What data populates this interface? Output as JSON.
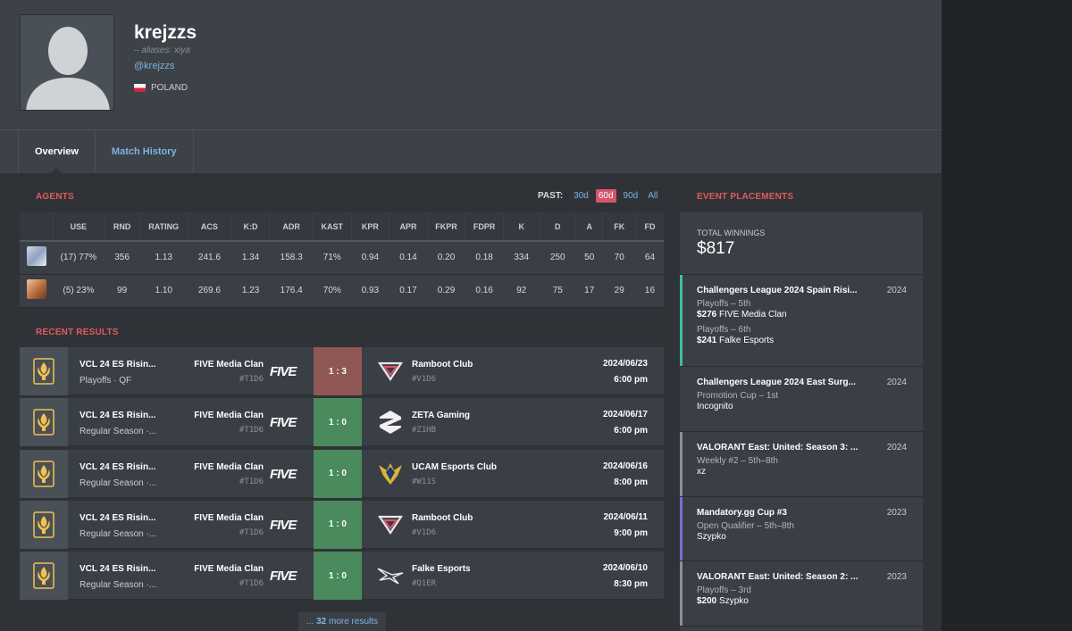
{
  "player": {
    "name": "krejzzs",
    "aliases": "– aliases: xiya",
    "handle": "@krejzzs",
    "country": "POLAND"
  },
  "tabs": [
    {
      "label": "Overview",
      "active": true
    },
    {
      "label": "Match History",
      "active": false
    }
  ],
  "agents": {
    "title": "AGENTS",
    "past_label": "PAST:",
    "past_options": [
      "30d",
      "60d",
      "90d",
      "All"
    ],
    "past_selected": "60d",
    "columns": [
      "",
      "USE",
      "RND",
      "RATING",
      "ACS",
      "K:D",
      "ADR",
      "KAST",
      "KPR",
      "APR",
      "FKPR",
      "FDPR",
      "K",
      "D",
      "A",
      "FK",
      "FD"
    ],
    "rows": [
      {
        "icon": "agent-portrait-icon",
        "cells": [
          "(17) 77%",
          "356",
          "1.13",
          "241.6",
          "1.34",
          "158.3",
          "71%",
          "0.94",
          "0.14",
          "0.20",
          "0.18",
          "334",
          "250",
          "50",
          "70",
          "64"
        ]
      },
      {
        "icon": "agent-portrait-icon",
        "cells": [
          "(5) 23%",
          "99",
          "1.10",
          "269.6",
          "1.23",
          "176.4",
          "70%",
          "0.93",
          "0.17",
          "0.29",
          "0.16",
          "92",
          "75",
          "17",
          "29",
          "16"
        ]
      }
    ]
  },
  "recent_results": {
    "title": "RECENT RESULTS",
    "items": [
      {
        "event": "VCL 24 ES Risin...",
        "stage": "Playoffs · QF",
        "team1": "FIVE Media Clan",
        "tag1": "#T1D6",
        "score": "1 : 3",
        "result": "loss",
        "team2": "Ramboot Club",
        "tag2": "#V1D6",
        "logo2": "ramboot",
        "date": "2024/06/23",
        "time": "6:00 pm"
      },
      {
        "event": "VCL 24 ES Risin...",
        "stage": "Regular Season ·...",
        "team1": "FIVE Media Clan",
        "tag1": "#T1D6",
        "score": "1 : 0",
        "result": "win",
        "team2": "ZETA Gaming",
        "tag2": "#Z1HB",
        "logo2": "zeta",
        "date": "2024/06/17",
        "time": "6:00 pm"
      },
      {
        "event": "VCL 24 ES Risin...",
        "stage": "Regular Season ·...",
        "team1": "FIVE Media Clan",
        "tag1": "#T1D6",
        "score": "1 : 0",
        "result": "win",
        "team2": "UCAM Esports Club",
        "tag2": "#W11S",
        "logo2": "ucam",
        "date": "2024/06/16",
        "time": "8:00 pm"
      },
      {
        "event": "VCL 24 ES Risin...",
        "stage": "Regular Season ·...",
        "team1": "FIVE Media Clan",
        "tag1": "#T1D6",
        "score": "1 : 0",
        "result": "win",
        "team2": "Ramboot Club",
        "tag2": "#V1D6",
        "logo2": "ramboot",
        "date": "2024/06/11",
        "time": "9:00 pm"
      },
      {
        "event": "VCL 24 ES Risin...",
        "stage": "Regular Season ·...",
        "team1": "FIVE Media Clan",
        "tag1": "#T1D6",
        "score": "1 : 0",
        "result": "win",
        "team2": "Falke Esports",
        "tag2": "#Q1ER",
        "logo2": "falke",
        "date": "2024/06/10",
        "time": "8:30 pm"
      }
    ],
    "team1_logo_text": "FIVE",
    "more_prefix": "...",
    "more_count": "32",
    "more_suffix": "more results"
  },
  "event_placements": {
    "title": "EVENT PLACEMENTS",
    "total_label": "TOTAL WINNINGS",
    "total_amount": "$817",
    "items": [
      {
        "event": "Challengers League 2024 Spain Risi...",
        "year": "2024",
        "bar_color": "#3fbf9f",
        "lines": [
          {
            "place": "Playoffs – 5th",
            "prize": "$276",
            "team": "FIVE Media Clan"
          },
          {
            "place": "Playoffs – 6th",
            "prize": "$241",
            "team": "Falke Esports"
          }
        ]
      },
      {
        "event": "Challengers League 2024 East Surg...",
        "year": "2024",
        "bar_color": "#3a3f46",
        "lines": [
          {
            "place": "Promotion Cup – 1st",
            "prize": "",
            "team": "Incognito"
          }
        ]
      },
      {
        "event": "VALORANT East: United: Season 3: ...",
        "year": "2024",
        "bar_color": "#8a9098",
        "lines": [
          {
            "place": "Weekly #2 – 5th–8th",
            "prize": "",
            "team": "xz"
          }
        ]
      },
      {
        "event": "Mandatory.gg Cup #3",
        "year": "2023",
        "bar_color": "#7a6fd0",
        "lines": [
          {
            "place": "Open Qualifier – 5th–8th",
            "prize": "",
            "team": "Szypko"
          }
        ]
      },
      {
        "event": "VALORANT East: United: Season 2: ...",
        "year": "2023",
        "bar_color": "#8a9098",
        "lines": [
          {
            "place": "Playoffs – 3rd",
            "prize": "$200",
            "team": "Szypko"
          }
        ]
      }
    ]
  }
}
